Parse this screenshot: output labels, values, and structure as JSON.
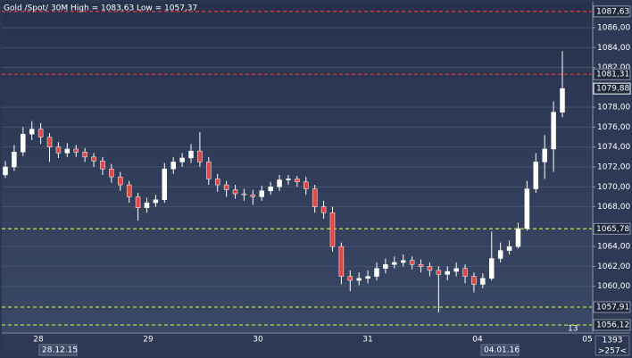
{
  "chart_data": {
    "type": "candlestick",
    "title": "Gold /Spot/ 30M High = 1083,63 Low = 1057,37",
    "categories": [
      "28",
      "29",
      "30",
      "31",
      "04",
      "05"
    ],
    "date_labels": [
      "28.12.15",
      "04.01.16"
    ],
    "ylim": [
      1055.4,
      1088.6
    ],
    "yticks": [
      {
        "value": 1060,
        "label": "1060,00"
      },
      {
        "value": 1062,
        "label": "1062,00"
      },
      {
        "value": 1064,
        "label": "1064,00"
      },
      {
        "value": 1068,
        "label": "1068,00"
      },
      {
        "value": 1070,
        "label": "1070,00"
      },
      {
        "value": 1072,
        "label": "1072,00"
      },
      {
        "value": 1074,
        "label": "1074,00"
      },
      {
        "value": 1076,
        "label": "1076,00"
      },
      {
        "value": 1078,
        "label": "1078,00"
      },
      {
        "value": 1082,
        "label": "1082,00"
      },
      {
        "value": 1084,
        "label": "1084,00"
      },
      {
        "value": 1086,
        "label": "1086,00"
      }
    ],
    "grid": true,
    "levels": [
      {
        "value": 1087.63,
        "label": "1087,63",
        "color": "#d83a3a"
      },
      {
        "value": 1081.31,
        "label": "1081,31",
        "color": "#d83a3a"
      },
      {
        "value": 1065.78,
        "label": "1065,78",
        "color": "#b8d84a"
      },
      {
        "value": 1057.91,
        "label": "1057,91",
        "color": "#b8d84a"
      },
      {
        "value": 1056.12,
        "label": "1056,12",
        "color": "#b8d84a"
      }
    ],
    "last_price": {
      "value": 1079.88,
      "label": "1079,88"
    },
    "up_color": "#ffffff",
    "down_color": "#e04848",
    "open": [
      1071.2,
      1072.0,
      1073.5,
      1075.3,
      1075.8,
      1075.0,
      1074.0,
      1073.4,
      1073.8,
      1073.5,
      1073.0,
      1072.6,
      1071.8,
      1071.0,
      1070.2,
      1069.0,
      1067.9,
      1068.4,
      1068.7,
      1071.8,
      1072.5,
      1072.9,
      1073.6,
      1072.5,
      1070.8,
      1070.2,
      1069.7,
      1069.3,
      1069.2,
      1069.0,
      1069.6,
      1070.0,
      1070.7,
      1070.8,
      1070.5,
      1069.8,
      1068.0,
      1067.4,
      1064.0,
      1061.0,
      1060.6,
      1060.8,
      1061.0,
      1061.8,
      1062.2,
      1062.4,
      1062.6,
      1062.2,
      1062.0,
      1061.6,
      1061.2,
      1061.5,
      1061.8,
      1061.0,
      1060.2,
      1060.8,
      1062.8,
      1063.6,
      1064.0,
      1065.8,
      1069.8,
      1072.5,
      1073.8,
      1077.5
    ],
    "high": [
      1072.6,
      1074.2,
      1076.0,
      1076.6,
      1076.4,
      1075.4,
      1074.5,
      1074.4,
      1074.2,
      1073.9,
      1073.4,
      1073.0,
      1072.3,
      1071.5,
      1070.6,
      1069.4,
      1068.9,
      1069.2,
      1072.4,
      1073.0,
      1073.4,
      1074.3,
      1075.5,
      1073.0,
      1071.3,
      1070.6,
      1070.2,
      1069.8,
      1069.7,
      1070.1,
      1070.5,
      1071.2,
      1071.2,
      1071.1,
      1071.0,
      1070.2,
      1068.6,
      1068.0,
      1064.4,
      1061.6,
      1061.4,
      1061.6,
      1062.4,
      1062.8,
      1063.0,
      1063.2,
      1063.0,
      1062.7,
      1062.4,
      1062.0,
      1062.0,
      1062.4,
      1062.2,
      1061.4,
      1061.3,
      1065.5,
      1064.4,
      1064.6,
      1066.4,
      1070.6,
      1073.4,
      1075.2,
      1078.6,
      1083.63
    ],
    "low": [
      1070.9,
      1071.6,
      1073.1,
      1074.7,
      1074.3,
      1072.5,
      1072.9,
      1073.0,
      1073.0,
      1072.5,
      1072.0,
      1071.2,
      1070.4,
      1069.6,
      1068.4,
      1066.6,
      1067.4,
      1068.0,
      1068.4,
      1071.3,
      1072.0,
      1072.4,
      1072.0,
      1070.2,
      1069.5,
      1069.0,
      1068.8,
      1068.6,
      1068.2,
      1068.6,
      1069.2,
      1069.6,
      1070.2,
      1070.0,
      1069.2,
      1067.4,
      1066.8,
      1063.5,
      1060.2,
      1059.5,
      1060.1,
      1060.3,
      1060.6,
      1061.3,
      1061.8,
      1062.0,
      1061.7,
      1061.4,
      1061.0,
      1057.37,
      1060.6,
      1061.0,
      1060.3,
      1059.4,
      1059.8,
      1060.6,
      1062.4,
      1063.2,
      1063.8,
      1065.6,
      1069.4,
      1070.8,
      1071.5,
      1077.0
    ],
    "close": [
      1072.0,
      1073.5,
      1075.3,
      1075.8,
      1075.0,
      1074.0,
      1073.4,
      1073.8,
      1073.5,
      1073.0,
      1072.6,
      1071.8,
      1071.0,
      1070.2,
      1069.0,
      1067.9,
      1068.4,
      1068.7,
      1071.8,
      1072.5,
      1072.9,
      1073.6,
      1072.5,
      1070.8,
      1070.2,
      1069.7,
      1069.3,
      1069.2,
      1069.0,
      1069.6,
      1070.0,
      1070.7,
      1070.8,
      1070.5,
      1069.8,
      1068.0,
      1067.4,
      1064.0,
      1061.0,
      1060.6,
      1060.8,
      1061.0,
      1061.8,
      1062.2,
      1062.4,
      1062.6,
      1062.2,
      1062.0,
      1061.6,
      1061.2,
      1061.5,
      1061.8,
      1061.0,
      1060.2,
      1060.8,
      1062.8,
      1063.6,
      1064.0,
      1065.8,
      1069.8,
      1072.5,
      1073.8,
      1077.5,
      1079.88
    ]
  },
  "status": {
    "marker": "13",
    "count": "1393",
    "zoom": ">257<"
  }
}
